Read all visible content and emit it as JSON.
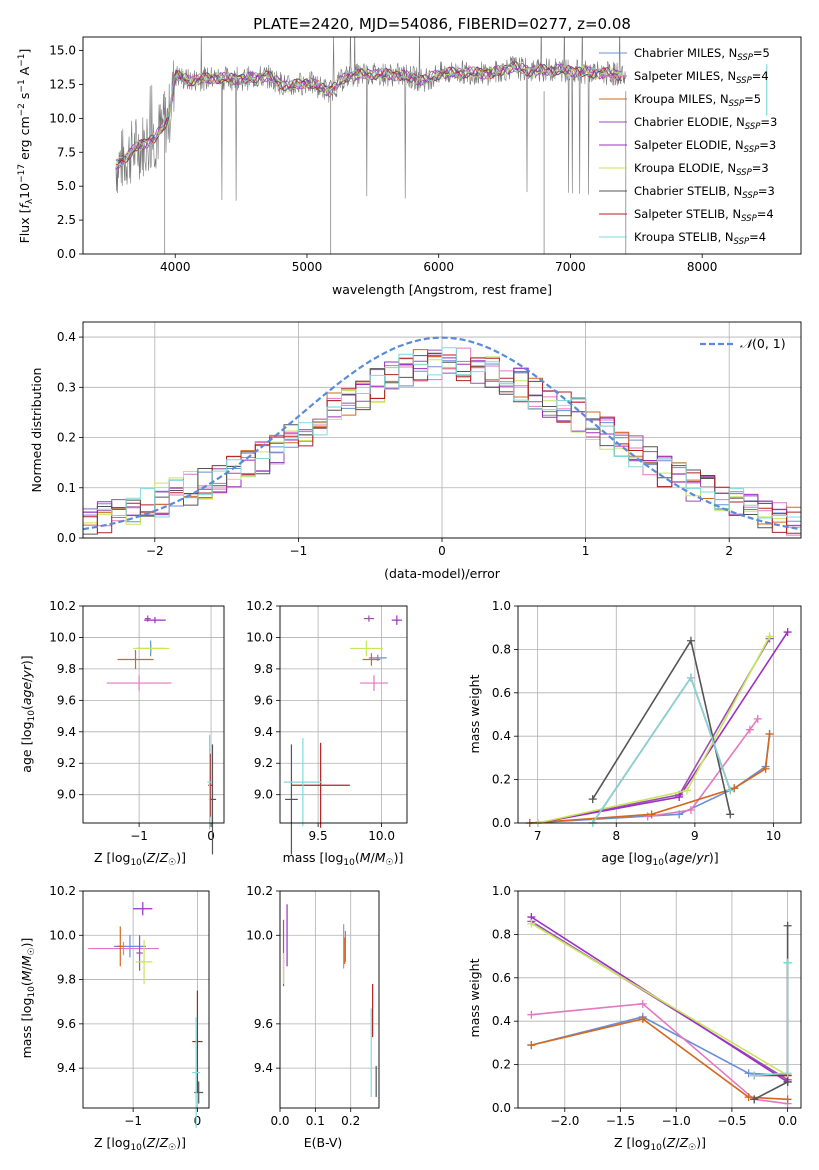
{
  "title": "PLATE=2420, MJD=54086, FIBERID=0277, z=0.08",
  "series_colors": {
    "Chabrier MILES": "#6a8fd6",
    "Salpeter MILES": "#e377c2",
    "Kroupa MILES": "#d2691e",
    "Chabrier ELODIE": "#9c4fb0",
    "Salpeter ELODIE": "#9c2fc4",
    "Kroupa ELODIE": "#c8e65a",
    "Chabrier STELIB": "#555555",
    "Salpeter STELIB": "#b22222",
    "Kroupa STELIB": "#7fdada"
  },
  "chart_data": [
    {
      "id": "spectrum",
      "type": "line",
      "xlabel": "wavelength [Angstrom, rest frame]",
      "ylabel": "Flux [f_λ10^-17 erg cm^-2 s^-1 A^-1]",
      "xlim": [
        3300,
        8750
      ],
      "ylim": [
        0,
        16
      ],
      "xticks": [
        4000,
        5000,
        6000,
        7000,
        8000
      ],
      "yticks": [
        0.0,
        2.5,
        5.0,
        7.5,
        10.0,
        12.5,
        15.0
      ],
      "legend_position": "right",
      "legend": [
        {
          "name": "Chabrier MILES",
          "suffix": "=5"
        },
        {
          "name": "Salpeter MILES",
          "suffix": "=4"
        },
        {
          "name": "Kroupa MILES",
          "suffix": "=5"
        },
        {
          "name": "Chabrier ELODIE",
          "suffix": "=3"
        },
        {
          "name": "Salpeter ELODIE",
          "suffix": "=3"
        },
        {
          "name": "Kroupa ELODIE",
          "suffix": "=3"
        },
        {
          "name": "Chabrier STELIB",
          "suffix": "=3"
        },
        {
          "name": "Salpeter STELIB",
          "suffix": "=4"
        },
        {
          "name": "Kroupa STELIB",
          "suffix": "=4"
        }
      ],
      "data_series": {
        "x": [
          3550,
          3700,
          3850,
          3950,
          4000,
          4100,
          4300,
          4500,
          4700,
          4862,
          5000,
          5175,
          5300,
          5500,
          5700,
          5890,
          6000,
          6200,
          6400,
          6563,
          6700,
          6900,
          7100,
          7300,
          7400
        ],
        "y": [
          6.5,
          7.8,
          8.6,
          10.0,
          13.2,
          12.8,
          13.0,
          12.9,
          13.1,
          12.3,
          12.7,
          12.0,
          13.1,
          13.3,
          13.2,
          12.8,
          13.3,
          13.4,
          13.3,
          13.8,
          13.5,
          13.6,
          13.4,
          13.3,
          13.2
        ]
      }
    },
    {
      "id": "residual_hist",
      "type": "line",
      "xlabel": "(data-model)/error",
      "ylabel": "Normed distribution",
      "xlim": [
        -2.5,
        2.5
      ],
      "ylim": [
        0,
        0.43
      ],
      "xticks": [
        -2,
        -1,
        0,
        1,
        2
      ],
      "yticks": [
        0.0,
        0.1,
        0.2,
        0.3,
        0.4
      ],
      "legend": [
        "𝒩(0, 1)"
      ],
      "legend_position": "top-right",
      "bins": [
        -2.5,
        -2.4,
        -2.3,
        -2.2,
        -2.1,
        -2.0,
        -1.9,
        -1.8,
        -1.7,
        -1.6,
        -1.5,
        -1.4,
        -1.3,
        -1.2,
        -1.1,
        -1.0,
        -0.9,
        -0.8,
        -0.7,
        -0.6,
        -0.5,
        -0.4,
        -0.3,
        -0.2,
        -0.1,
        0.0,
        0.1,
        0.2,
        0.3,
        0.4,
        0.5,
        0.6,
        0.7,
        0.8,
        0.9,
        1.0,
        1.1,
        1.2,
        1.3,
        1.4,
        1.5,
        1.6,
        1.7,
        1.8,
        1.9,
        2.0,
        2.1,
        2.2,
        2.3,
        2.4
      ],
      "density": [
        0.035,
        0.04,
        0.055,
        0.06,
        0.065,
        0.075,
        0.085,
        0.1,
        0.11,
        0.12,
        0.13,
        0.145,
        0.16,
        0.18,
        0.195,
        0.215,
        0.235,
        0.255,
        0.275,
        0.29,
        0.305,
        0.32,
        0.335,
        0.345,
        0.345,
        0.35,
        0.345,
        0.34,
        0.33,
        0.32,
        0.305,
        0.29,
        0.275,
        0.26,
        0.245,
        0.23,
        0.21,
        0.19,
        0.17,
        0.155,
        0.135,
        0.12,
        0.105,
        0.09,
        0.08,
        0.065,
        0.055,
        0.05,
        0.04,
        0.035
      ]
    },
    {
      "id": "age_vs_Z",
      "type": "scatter",
      "xlabel": "Z [log10(Z/Z☉)]",
      "ylabel": "age [log10(age/yr)]",
      "xlim": [
        -1.78,
        0.18
      ],
      "ylim": [
        8.82,
        10.2
      ],
      "xticks": [
        -1,
        0
      ],
      "yticks": [
        9.0,
        9.2,
        9.4,
        9.6,
        9.8,
        10.0,
        10.2
      ],
      "points": [
        {
          "series": "Chabrier MILES",
          "x": -0.84,
          "y": 9.93,
          "xerr": 0.2,
          "yerr": 0.05
        },
        {
          "series": "Salpeter MILES",
          "x": -1.0,
          "y": 9.71,
          "xerr": 0.45,
          "yerr": 0.05
        },
        {
          "series": "Kroupa MILES",
          "x": -1.05,
          "y": 9.86,
          "xerr": 0.25,
          "yerr": 0.06
        },
        {
          "series": "Chabrier ELODIE",
          "x": -0.88,
          "y": 10.12,
          "xerr": 0.04,
          "yerr": 0.02
        },
        {
          "series": "Salpeter ELODIE",
          "x": -0.78,
          "y": 10.11,
          "xerr": 0.15,
          "yerr": 0.02
        },
        {
          "series": "Kroupa ELODIE",
          "x": -0.83,
          "y": 9.93,
          "xerr": 0.25,
          "yerr": 0.03
        },
        {
          "series": "Chabrier STELIB",
          "x": 0.02,
          "y": 8.97,
          "xerr": 0.05,
          "yerr": 0.35
        },
        {
          "series": "Salpeter STELIB",
          "x": -0.01,
          "y": 9.06,
          "xerr": 0.03,
          "yerr": 0.2
        },
        {
          "series": "Kroupa STELIB",
          "x": -0.02,
          "y": 9.08,
          "xerr": 0.03,
          "yerr": 0.3
        }
      ]
    },
    {
      "id": "age_vs_mass",
      "type": "scatter",
      "xlabel": "mass [log10(M/M☉)]",
      "ylabel": "",
      "xlim": [
        9.2,
        10.2
      ],
      "ylim": [
        8.82,
        10.2
      ],
      "xticks": [
        9.5,
        10.0
      ],
      "yticks": [
        9.0,
        9.2,
        9.4,
        9.6,
        9.8,
        10.0,
        10.2
      ],
      "points": [
        {
          "series": "Chabrier MILES",
          "x": 9.97,
          "y": 9.87,
          "xerr": 0.07,
          "yerr": 0.02
        },
        {
          "series": "Salpeter MILES",
          "x": 9.94,
          "y": 9.71,
          "xerr": 0.11,
          "yerr": 0.05
        },
        {
          "series": "Kroupa MILES",
          "x": 9.92,
          "y": 9.86,
          "xerr": 0.07,
          "yerr": 0.04
        },
        {
          "series": "Chabrier ELODIE",
          "x": 9.9,
          "y": 10.12,
          "xerr": 0.04,
          "yerr": 0.02
        },
        {
          "series": "Salpeter ELODIE",
          "x": 10.12,
          "y": 10.11,
          "xerr": 0.04,
          "yerr": 0.03
        },
        {
          "series": "Kroupa ELODIE",
          "x": 9.88,
          "y": 9.93,
          "xerr": 0.13,
          "yerr": 0.05
        },
        {
          "series": "Chabrier STELIB",
          "x": 9.29,
          "y": 8.97,
          "xerr": 0.05,
          "yerr": 0.35
        },
        {
          "series": "Salpeter STELIB",
          "x": 9.52,
          "y": 9.06,
          "xerr": 0.23,
          "yerr": 0.27
        },
        {
          "series": "Kroupa STELIB",
          "x": 9.38,
          "y": 9.08,
          "xerr": 0.15,
          "yerr": 0.28
        }
      ]
    },
    {
      "id": "weights_vs_age",
      "type": "line",
      "xlabel": "age [log10(age/yr)]",
      "ylabel": "mass weight",
      "xlim": [
        6.75,
        10.35
      ],
      "ylim": [
        0,
        1.0
      ],
      "xticks": [
        7,
        8,
        9,
        10
      ],
      "yticks": [
        0.0,
        0.2,
        0.4,
        0.6,
        0.8,
        1.0
      ],
      "series": [
        {
          "name": "Chabrier MILES",
          "x": [
            6.9,
            8.8,
            9.5,
            9.9,
            9.95
          ],
          "y": [
            0.0,
            0.04,
            0.16,
            0.26,
            0.41
          ]
        },
        {
          "name": "Salpeter MILES",
          "x": [
            8.4,
            8.95,
            9.7,
            9.8
          ],
          "y": [
            0.03,
            0.06,
            0.43,
            0.48
          ]
        },
        {
          "name": "Kroupa MILES",
          "x": [
            6.9,
            8.45,
            9.5,
            9.9,
            9.95
          ],
          "y": [
            0.0,
            0.04,
            0.16,
            0.25,
            0.41
          ]
        },
        {
          "name": "Chabrier ELODIE",
          "x": [
            7.0,
            8.8,
            9.95
          ],
          "y": [
            0.0,
            0.13,
            0.85
          ]
        },
        {
          "name": "Salpeter ELODIE",
          "x": [
            7.0,
            8.8,
            10.18
          ],
          "y": [
            0.0,
            0.12,
            0.88
          ]
        },
        {
          "name": "Kroupa ELODIE",
          "x": [
            7.0,
            8.9,
            9.95
          ],
          "y": [
            0.0,
            0.15,
            0.86
          ]
        },
        {
          "name": "Chabrier STELIB",
          "x": [
            7.7,
            8.95,
            9.45
          ],
          "y": [
            0.11,
            0.84,
            0.04
          ]
        },
        {
          "name": "Salpeter STELIB",
          "x": [
            7.7,
            8.95,
            9.45
          ],
          "y": [
            0.0,
            0.67,
            0.15
          ]
        },
        {
          "name": "Kroupa STELIB",
          "x": [
            7.7,
            8.95,
            9.45
          ],
          "y": [
            0.0,
            0.67,
            0.15
          ]
        }
      ]
    },
    {
      "id": "mass_vs_Z",
      "type": "scatter",
      "xlabel": "Z [log10(Z/Z☉)]",
      "ylabel": "mass [log10(M/M☉)]",
      "xlim": [
        -1.78,
        0.18
      ],
      "ylim": [
        9.22,
        10.2
      ],
      "xticks": [
        -1,
        0
      ],
      "yticks": [
        9.4,
        9.6,
        9.8,
        10.0,
        10.2
      ],
      "points": [
        {
          "series": "Chabrier MILES",
          "x": -1.05,
          "y": 9.95,
          "xerr": 0.25,
          "yerr": 0.05
        },
        {
          "series": "Salpeter MILES",
          "x": -1.15,
          "y": 9.94,
          "xerr": 0.55,
          "yerr": 0.03
        },
        {
          "series": "Kroupa MILES",
          "x": -1.2,
          "y": 9.95,
          "xerr": 0.05,
          "yerr": 0.09
        },
        {
          "series": "Chabrier ELODIE",
          "x": -0.9,
          "y": 9.92,
          "xerr": 0.05,
          "yerr": 0.08
        },
        {
          "series": "Salpeter ELODIE",
          "x": -0.85,
          "y": 10.12,
          "xerr": 0.15,
          "yerr": 0.03
        },
        {
          "series": "Kroupa ELODIE",
          "x": -0.83,
          "y": 9.88,
          "xerr": 0.13,
          "yerr": 0.1
        },
        {
          "series": "Chabrier STELIB",
          "x": 0.02,
          "y": 9.29,
          "xerr": 0.07,
          "yerr": 0.05
        },
        {
          "series": "Salpeter STELIB",
          "x": 0.0,
          "y": 9.52,
          "xerr": 0.08,
          "yerr": 0.23
        },
        {
          "series": "Kroupa STELIB",
          "x": -0.02,
          "y": 9.38,
          "xerr": 0.06,
          "yerr": 0.25
        }
      ]
    },
    {
      "id": "mass_vs_ebv",
      "type": "scatter",
      "xlabel": "E(B-V)",
      "ylabel": "",
      "xlim": [
        0,
        0.28
      ],
      "ylim": [
        9.22,
        10.2
      ],
      "xticks": [
        0.0,
        0.1,
        0.2
      ],
      "yticks": [
        9.4,
        9.6,
        10.0,
        10.2
      ],
      "points": [
        {
          "series": "Chabrier MILES",
          "x": 0.185,
          "y": 9.95,
          "xerr": 0,
          "yerr": 0.07
        },
        {
          "series": "Salpeter MILES",
          "x": 0.18,
          "y": 9.95,
          "xerr": 0,
          "yerr": 0.1
        },
        {
          "series": "Kroupa MILES",
          "x": 0.183,
          "y": 9.93,
          "xerr": 0,
          "yerr": 0.06
        },
        {
          "series": "Chabrier ELODIE",
          "x": 0.01,
          "y": 9.92,
          "xerr": 0,
          "yerr": 0.15
        },
        {
          "series": "Salpeter ELODIE",
          "x": 0.02,
          "y": 10.0,
          "xerr": 0,
          "yerr": 0.14
        },
        {
          "series": "Kroupa ELODIE",
          "x": 0.01,
          "y": 9.85,
          "xerr": 0,
          "yerr": 0.07
        },
        {
          "series": "Chabrier STELIB",
          "x": 0.272,
          "y": 9.34,
          "xerr": 0,
          "yerr": 0.07
        },
        {
          "series": "Salpeter STELIB",
          "x": 0.262,
          "y": 9.66,
          "xerr": 0,
          "yerr": 0.12
        },
        {
          "series": "Kroupa STELIB",
          "x": 0.258,
          "y": 9.47,
          "xerr": 0,
          "yerr": 0.2
        }
      ]
    },
    {
      "id": "weights_vs_Z",
      "type": "line",
      "xlabel": "Z [log10(Z/Z☉)]",
      "ylabel": "mass weight",
      "xlim": [
        -2.42,
        0.12
      ],
      "ylim": [
        0,
        1.0
      ],
      "xticks": [
        -2.0,
        -1.5,
        -1.0,
        -0.5,
        0.0
      ],
      "yticks": [
        0.0,
        0.2,
        0.4,
        0.6,
        0.8,
        1.0
      ],
      "series": [
        {
          "name": "Chabrier MILES",
          "x": [
            -2.3,
            -1.3,
            -0.35,
            0.0
          ],
          "y": [
            0.29,
            0.42,
            0.16,
            0.15
          ]
        },
        {
          "name": "Salpeter MILES",
          "x": [
            -2.3,
            -1.3,
            -0.3,
            0.0
          ],
          "y": [
            0.43,
            0.48,
            0.04,
            0.02
          ]
        },
        {
          "name": "Kroupa MILES",
          "x": [
            -2.3,
            -1.3,
            -0.35,
            0.0
          ],
          "y": [
            0.29,
            0.41,
            0.05,
            0.04
          ]
        },
        {
          "name": "Chabrier ELODIE",
          "x": [
            -2.3,
            0.0
          ],
          "y": [
            0.86,
            0.13
          ]
        },
        {
          "name": "Salpeter ELODIE",
          "x": [
            -2.3,
            0.0
          ],
          "y": [
            0.88,
            0.12
          ]
        },
        {
          "name": "Kroupa ELODIE",
          "x": [
            -2.3,
            0.0
          ],
          "y": [
            0.85,
            0.15
          ]
        },
        {
          "name": "Chabrier STELIB",
          "x": [
            -0.3,
            0.0,
            0.0
          ],
          "y": [
            0.04,
            0.12,
            0.84
          ]
        },
        {
          "name": "Salpeter STELIB",
          "x": [
            -0.3,
            0.0,
            0.0
          ],
          "y": [
            0.15,
            0.15,
            0.67
          ]
        },
        {
          "name": "Kroupa STELIB",
          "x": [
            -0.3,
            0.0,
            0.0
          ],
          "y": [
            0.15,
            0.16,
            0.67
          ]
        }
      ]
    }
  ]
}
